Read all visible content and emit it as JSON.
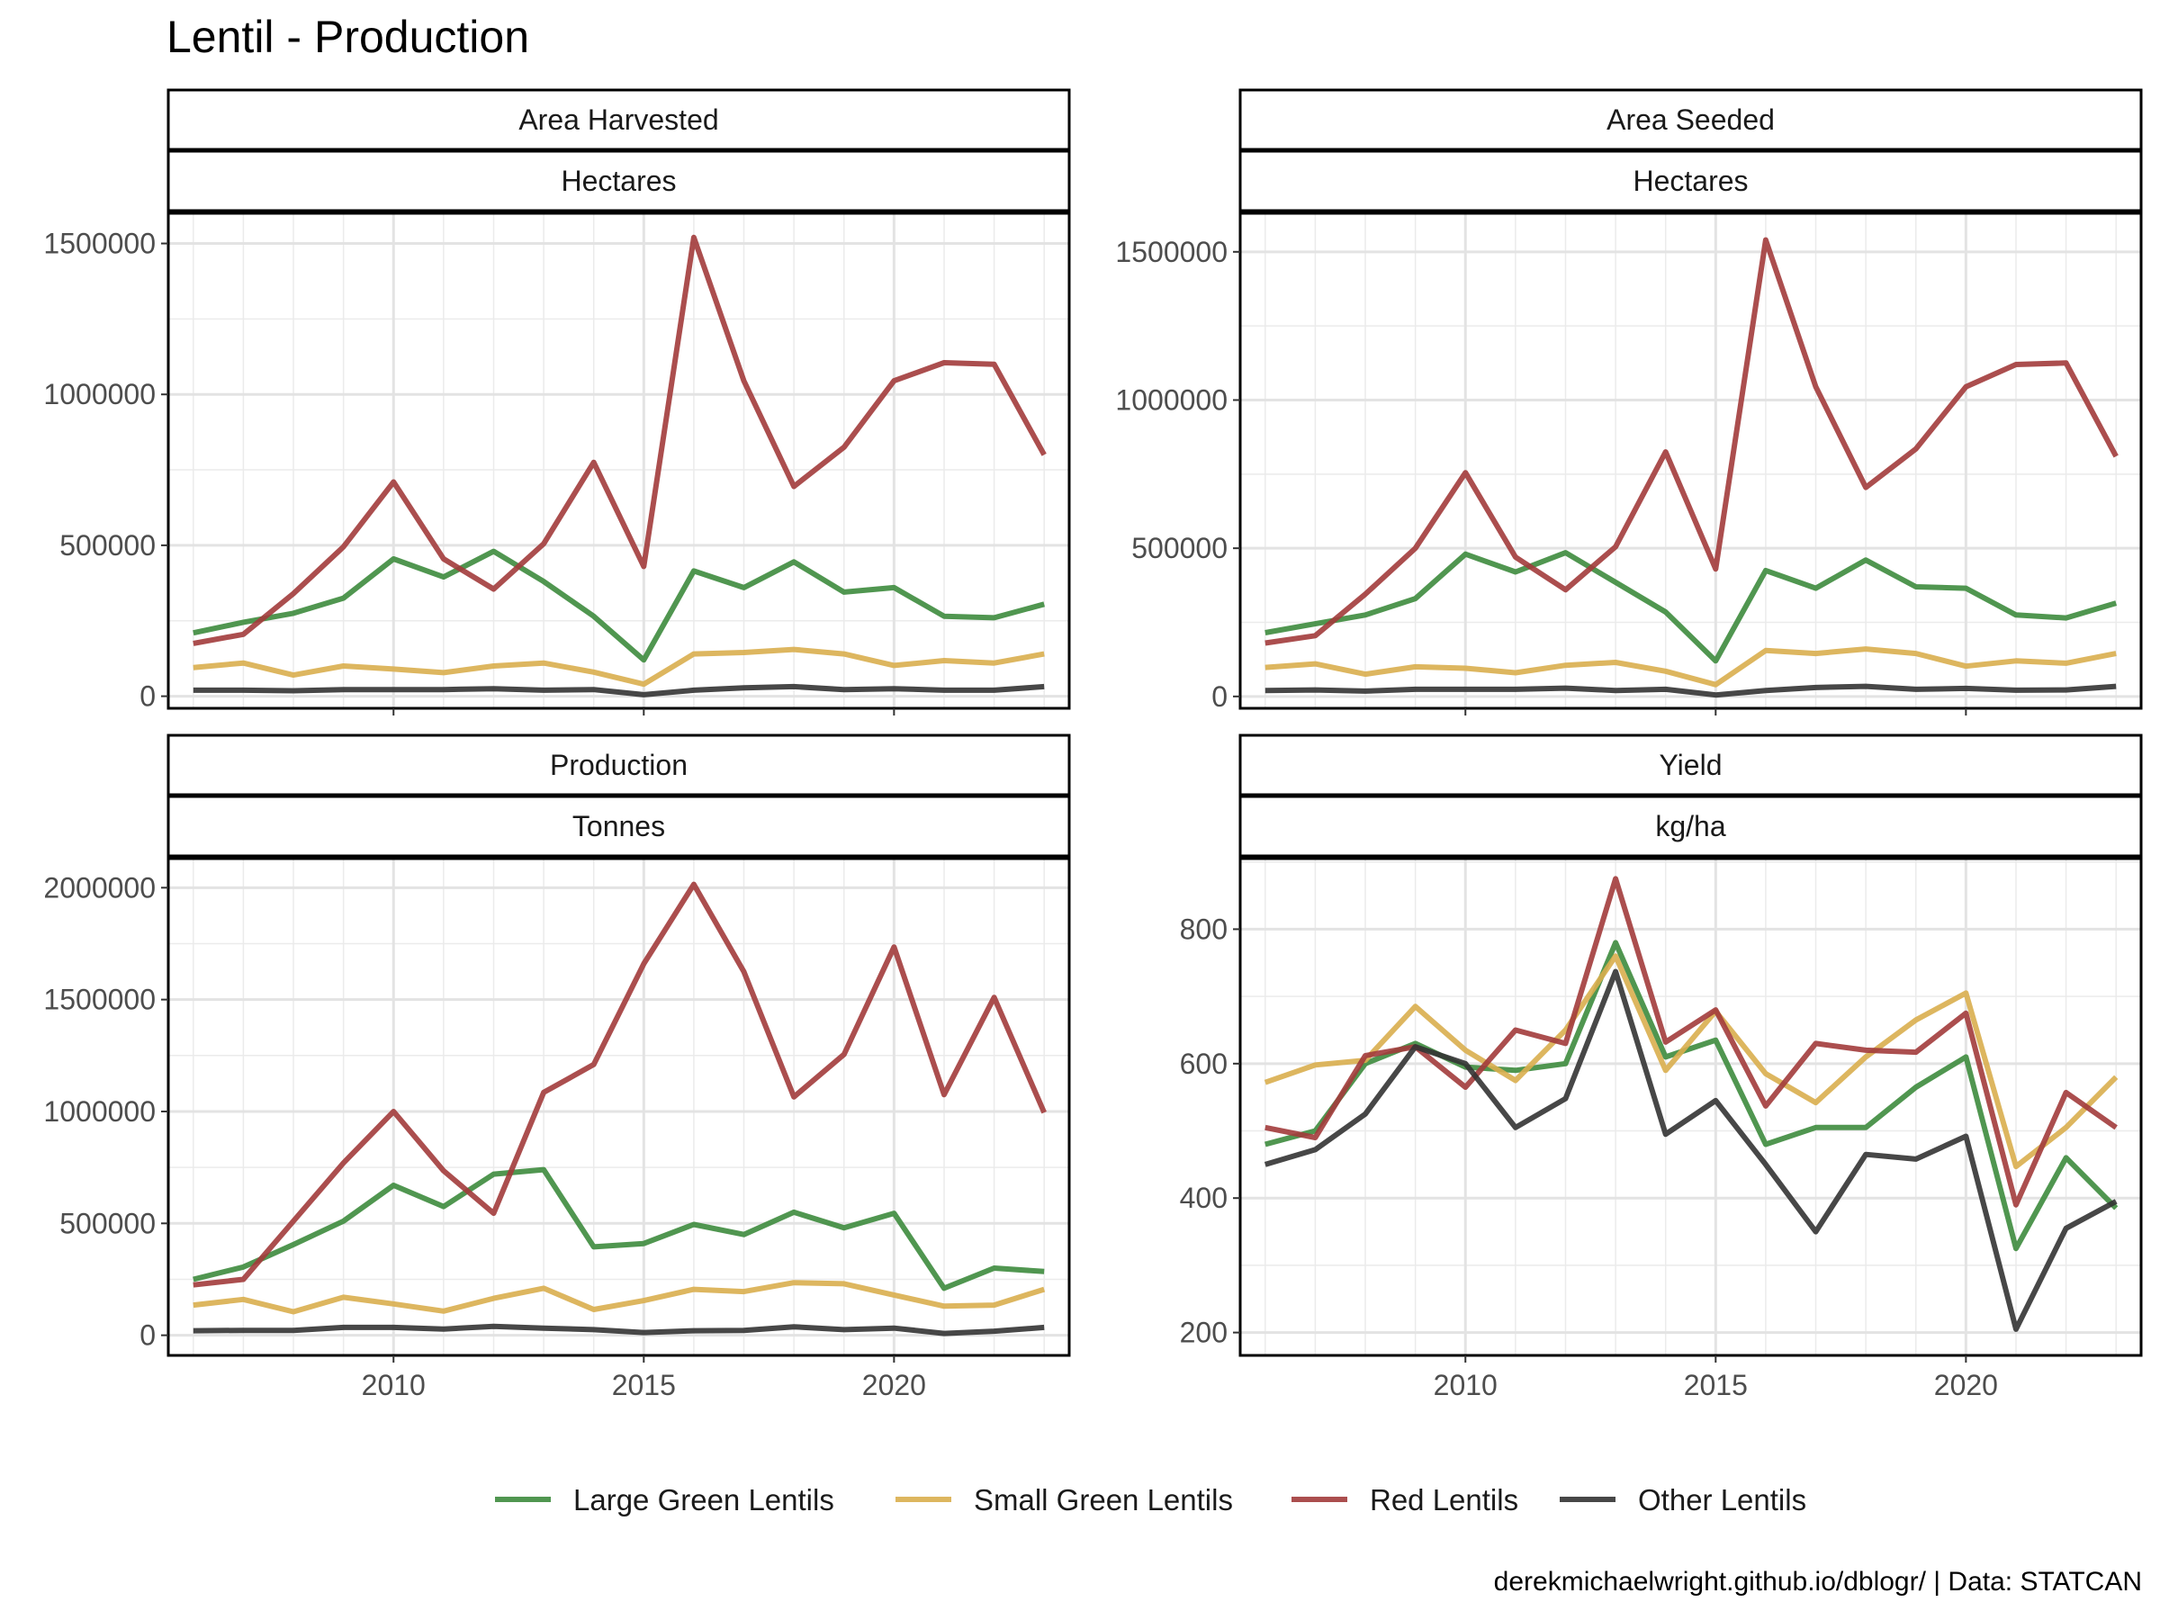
{
  "chart_data": {
    "type": "line",
    "title": "Lentil - Production",
    "caption": "derekmichaelwright.github.io/dblogr/ | Data: STATCAN",
    "x": [
      2006,
      2007,
      2008,
      2009,
      2010,
      2011,
      2012,
      2013,
      2014,
      2015,
      2016,
      2017,
      2018,
      2019,
      2020,
      2021,
      2022,
      2023
    ],
    "x_ticks": [
      2010,
      2015,
      2020
    ],
    "xlim": [
      2005.5,
      2023.5
    ],
    "legend_position": "bottom",
    "grid": true,
    "series_names": [
      "Large Green Lentils",
      "Small Green Lentils",
      "Red Lentils",
      "Other Lentils"
    ],
    "colors": {
      "Large Green Lentils": "#3d8b3d",
      "Small Green Lentils": "#d9ae4e",
      "Red Lentils": "#a23b3b",
      "Other Lentils": "#333333"
    },
    "panels": [
      {
        "measure": "Area Harvested",
        "unit": "Hectares",
        "ylim": [
          -40000,
          1600000
        ],
        "y_ticks": [
          0,
          500000,
          1000000,
          1500000
        ],
        "series": [
          {
            "name": "Large Green Lentils",
            "values": [
              210000,
              245000,
              275000,
              325000,
              455000,
              395000,
              480000,
              380000,
              265000,
              120000,
              415000,
              360000,
              445000,
              345000,
              360000,
              265000,
              260000,
              305000
            ]
          },
          {
            "name": "Small Green Lentils",
            "values": [
              95000,
              110000,
              70000,
              100000,
              90000,
              78000,
              100000,
              110000,
              80000,
              40000,
              140000,
              145000,
              155000,
              140000,
              102000,
              118000,
              110000,
              140000
            ]
          },
          {
            "name": "Red Lentils",
            "values": [
              175000,
              205000,
              340000,
              495000,
              710000,
              455000,
              355000,
              505000,
              775000,
              430000,
              1520000,
              1045000,
              695000,
              825000,
              1045000,
              1105000,
              1100000,
              800000
            ]
          },
          {
            "name": "Other Lentils",
            "values": [
              20000,
              20000,
              18000,
              22000,
              22000,
              22000,
              25000,
              20000,
              22000,
              5000,
              20000,
              28000,
              32000,
              22000,
              25000,
              20000,
              20000,
              32000
            ]
          }
        ]
      },
      {
        "measure": "Area Seeded",
        "unit": "Hectares",
        "ylim": [
          -40000,
          1630000
        ],
        "y_ticks": [
          0,
          500000,
          1000000,
          1500000
        ],
        "series": [
          {
            "name": "Large Green Lentils",
            "values": [
              215000,
              245000,
              275000,
              330000,
              480000,
              420000,
              485000,
              385000,
              285000,
              120000,
              425000,
              365000,
              460000,
              370000,
              365000,
              275000,
              265000,
              315000
            ]
          },
          {
            "name": "Small Green Lentils",
            "values": [
              98000,
              110000,
              75000,
              100000,
              95000,
              80000,
              105000,
              115000,
              85000,
              40000,
              155000,
              145000,
              160000,
              145000,
              102000,
              120000,
              112000,
              145000
            ]
          },
          {
            "name": "Red Lentils",
            "values": [
              180000,
              205000,
              345000,
              500000,
              755000,
              470000,
              360000,
              505000,
              825000,
              430000,
              1540000,
              1045000,
              705000,
              835000,
              1045000,
              1120000,
              1125000,
              810000
            ]
          },
          {
            "name": "Other Lentils",
            "values": [
              20000,
              22000,
              18000,
              24000,
              24000,
              24000,
              28000,
              20000,
              24000,
              5000,
              20000,
              30000,
              34000,
              24000,
              27000,
              21000,
              22000,
              34000
            ]
          }
        ]
      },
      {
        "measure": "Production",
        "unit": "Tonnes",
        "ylim": [
          -90000,
          2130000
        ],
        "y_ticks": [
          0,
          500000,
          1000000,
          1500000,
          2000000
        ],
        "series": [
          {
            "name": "Large Green Lentils",
            "values": [
              250000,
              305000,
              405000,
              510000,
              670000,
              575000,
              720000,
              740000,
              395000,
              410000,
              495000,
              450000,
              550000,
              480000,
              545000,
              210000,
              300000,
              285000
            ]
          },
          {
            "name": "Small Green Lentils",
            "values": [
              135000,
              160000,
              105000,
              170000,
              140000,
              108000,
              165000,
              210000,
              115000,
              155000,
              205000,
              195000,
              235000,
              230000,
              180000,
              130000,
              135000,
              205000
            ]
          },
          {
            "name": "Red Lentils",
            "values": [
              225000,
              250000,
              510000,
              770000,
              1000000,
              735000,
              545000,
              1085000,
              1210000,
              1660000,
              2015000,
              1625000,
              1065000,
              1255000,
              1735000,
              1075000,
              1510000,
              995000
            ]
          },
          {
            "name": "Other Lentils",
            "values": [
              20000,
              22000,
              22000,
              35000,
              35000,
              28000,
              40000,
              32000,
              25000,
              12000,
              20000,
              22000,
              38000,
              25000,
              32000,
              8000,
              18000,
              35000
            ]
          }
        ]
      },
      {
        "measure": "Yield",
        "unit": "kg/ha",
        "ylim": [
          166,
          905
        ],
        "y_ticks": [
          200,
          400,
          600,
          800
        ],
        "series": [
          {
            "name": "Large Green Lentils",
            "values": [
              480,
              500,
              600,
              630,
              595,
              590,
              600,
              780,
              610,
              635,
              480,
              505,
              505,
              565,
              610,
              325,
              460,
              385
            ]
          },
          {
            "name": "Small Green Lentils",
            "values": [
              572,
              598,
              605,
              685,
              620,
              575,
              650,
              760,
              590,
              678,
              585,
              542,
              610,
              665,
              705,
              447,
              505,
              580
            ]
          },
          {
            "name": "Red Lentils",
            "values": [
              505,
              490,
              612,
              625,
              565,
              650,
              630,
              875,
              632,
              680,
              537,
              630,
              620,
              617,
              675,
              390,
              557,
              505
            ]
          },
          {
            "name": "Other Lentils",
            "values": [
              450,
              472,
              525,
              625,
              600,
              505,
              548,
              737,
              495,
              545,
              450,
              350,
              465,
              458,
              492,
              205,
              355,
              395
            ]
          }
        ]
      }
    ]
  }
}
